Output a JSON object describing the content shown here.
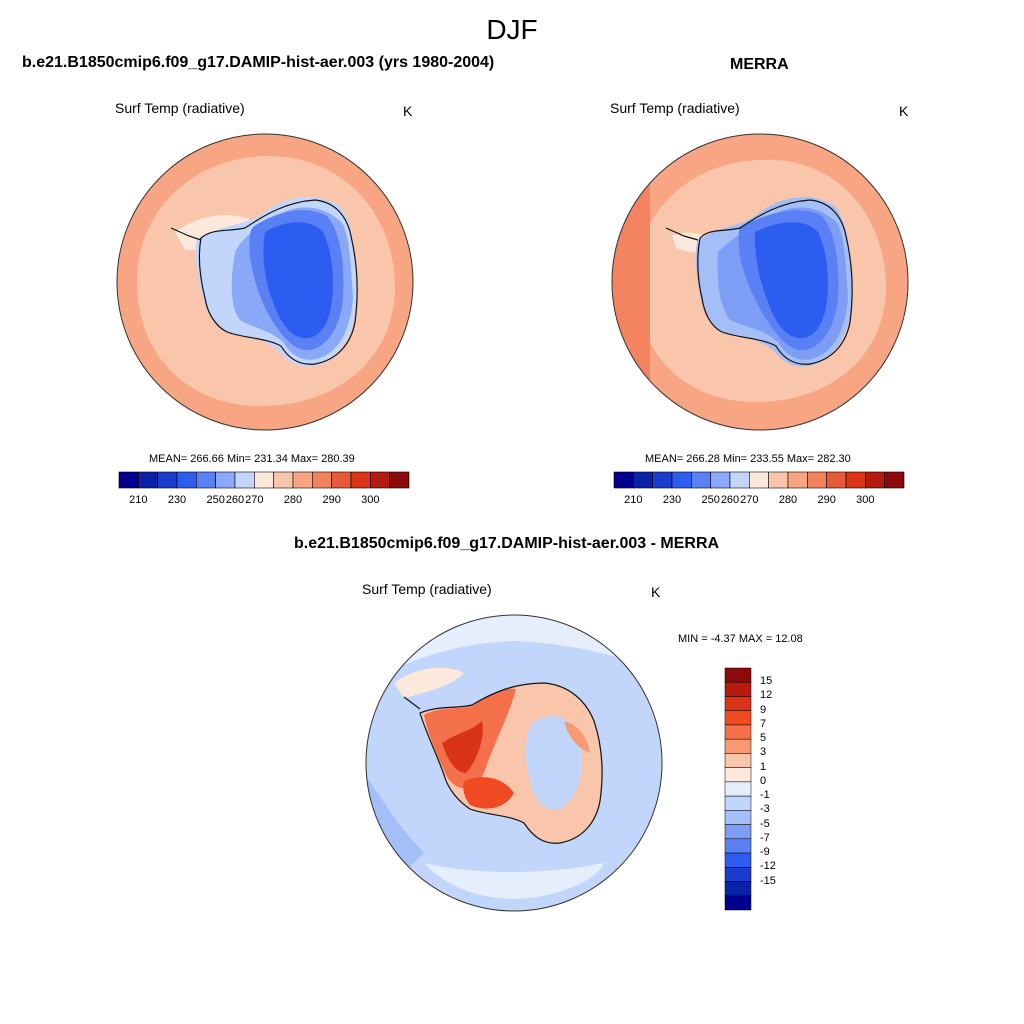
{
  "main_title": "DJF",
  "panels": [
    {
      "title": "b.e21.B1850cmip6.f09_g17.DAMIP-hist-aer.003 (yrs 1980-2004)",
      "variable": "Surf Temp (radiative)",
      "units": "K",
      "stats": "MEAN= 266.66  Min= 231.34  Max= 280.39"
    },
    {
      "title": "MERRA",
      "variable": "Surf Temp (radiative)",
      "units": "K",
      "stats": "MEAN= 266.28  Min= 233.55  Max= 282.30"
    },
    {
      "title": "b.e21.B1850cmip6.f09_g17.DAMIP-hist-aer.003 - MERRA",
      "variable": "Surf Temp (radiative)",
      "units": "K",
      "stats": "MIN =  -4.37 MAX =  12.08"
    }
  ],
  "abs_colorbar": {
    "labels": [
      "210",
      "230",
      "250",
      "260",
      "270",
      "280",
      "290",
      "300"
    ],
    "colors": [
      "#00008f",
      "#0a22a8",
      "#1c3ccc",
      "#2d5cf0",
      "#5a80f5",
      "#8aa8f8",
      "#c2d6fb",
      "#fde8dc",
      "#f9c6ab",
      "#f7a582",
      "#f48460",
      "#e95a3a",
      "#d93418",
      "#b51b0e",
      "#8b0a0a"
    ]
  },
  "diff_colorbar": {
    "labels": [
      "15",
      "12",
      "9",
      "7",
      "5",
      "3",
      "1",
      "0",
      "-1",
      "-3",
      "-5",
      "-7",
      "-9",
      "-12",
      "-15"
    ],
    "colors": [
      "#8b0a0a",
      "#b51b0e",
      "#d93418",
      "#f04a22",
      "#f4704a",
      "#f79a74",
      "#f9c6ab",
      "#fde8dc",
      "#e4eefc",
      "#c2d6fb",
      "#a4bef8",
      "#7e9ef5",
      "#5a80f5",
      "#2d5cf0",
      "#1c3ccc",
      "#0a22a8",
      "#00008f"
    ]
  }
}
